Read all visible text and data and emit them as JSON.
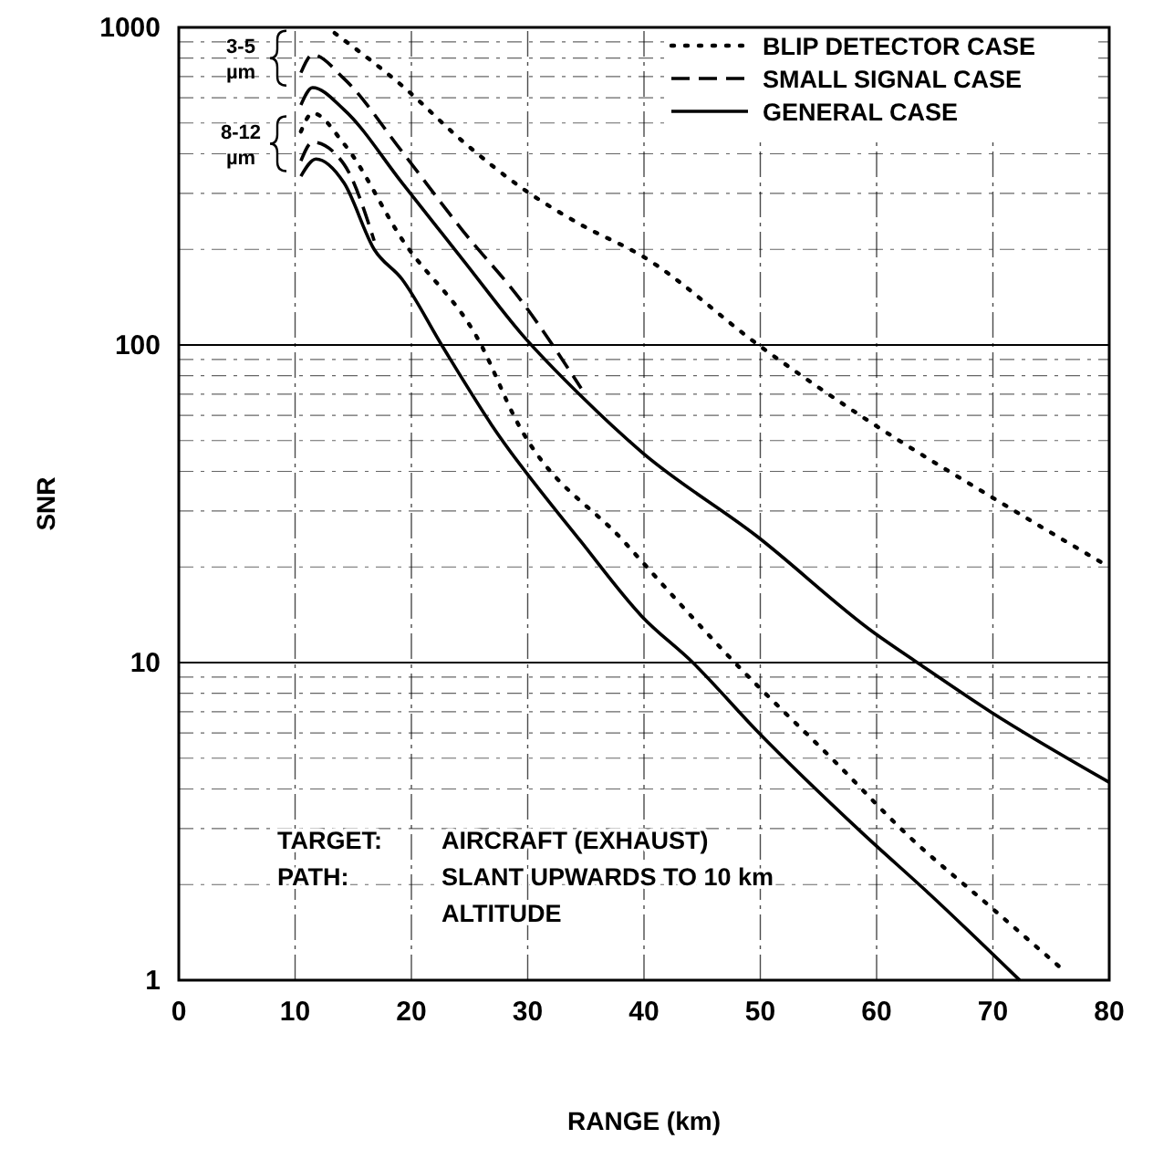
{
  "chart_data": {
    "type": "line",
    "xlabel": "RANGE (km)",
    "ylabel": "SNR",
    "log": "y",
    "grid": true,
    "legend": "top right",
    "marker": "none",
    "xlim": [
      0,
      80
    ],
    "ylim": [
      1,
      1000
    ],
    "xticks": [
      0,
      10,
      20,
      30,
      40,
      50,
      60,
      70,
      80
    ],
    "yticks": [
      1,
      {
        "value": 2,
        "label": null
      },
      {
        "value": 3,
        "label": null
      },
      {
        "value": 4,
        "label": null
      },
      {
        "value": 5,
        "label": null
      },
      {
        "value": 6,
        "label": null
      },
      {
        "value": 7,
        "label": null
      },
      {
        "value": 8,
        "label": null
      },
      {
        "value": 9,
        "label": null
      },
      10,
      {
        "value": 20,
        "label": null
      },
      {
        "value": 30,
        "label": null
      },
      {
        "value": 40,
        "label": null
      },
      {
        "value": 50,
        "label": null
      },
      {
        "value": 60,
        "label": null
      },
      {
        "value": 70,
        "label": null
      },
      {
        "value": 80,
        "label": null
      },
      {
        "value": 90,
        "label": null
      },
      100,
      {
        "value": 200,
        "label": null
      },
      {
        "value": 300,
        "label": null
      },
      {
        "value": 400,
        "label": null
      },
      {
        "value": 500,
        "label": null
      },
      {
        "value": 600,
        "label": null
      },
      {
        "value": 700,
        "label": null
      },
      {
        "value": 800,
        "label": null
      },
      {
        "value": 900,
        "label": null
      },
      1000
    ],
    "series": [
      {
        "name": "BLIP DETECTOR CASE",
        "color": "#000000",
        "line_style": "dotted",
        "x": [
          13.4,
          19.2,
          24.5,
          29.5,
          34.6,
          39.8,
          50,
          59.2,
          70,
          80
        ],
        "values": [
          960,
          655,
          435,
          312,
          239,
          191,
          99,
          58,
          33,
          20
        ]
      },
      {
        "name": "SMALL SIGNAL CASE",
        "color": "#000000",
        "line_style": "dashed",
        "x": [
          10.5,
          11.5,
          14.2,
          19.2,
          24.5,
          29.5,
          34.6
        ],
        "values": [
          720,
          820,
          690,
          406,
          227,
          137,
          73
        ]
      },
      {
        "name": "GENERAL CASE",
        "color": "#000000",
        "line_style": "solid",
        "x": [
          10.5,
          11.5,
          14.2,
          19.2,
          24.5,
          29.5,
          34.6,
          39.8,
          49.7,
          59.8,
          63.5,
          69.8,
          80
        ],
        "values": [
          570,
          646,
          551,
          324,
          184,
          108,
          69,
          46,
          25,
          12.4,
          10,
          7,
          4.2
        ]
      },
      {
        "color": "#000000",
        "line_style": "dotted",
        "x": [
          10.5,
          11.5,
          14.2,
          19.2,
          26,
          29,
          38.3,
          47.8,
          56.6,
          62.5,
          69.8,
          76
        ],
        "values": [
          470,
          537,
          430,
          215,
          100,
          58,
          24,
          10,
          4.8,
          2.9,
          1.7,
          1.08
        ]
      },
      {
        "color": "#000000",
        "line_style": "dashed",
        "x": [
          10.5,
          11.5,
          14.2,
          16.8
        ],
        "values": [
          380,
          435,
          371,
          213
        ]
      },
      {
        "color": "#000000",
        "line_style": "solid",
        "x": [
          10.5,
          11.8,
          14.2,
          16.8,
          19.2,
          22.6,
          26.9,
          34.6,
          39.8,
          44.2,
          49.7,
          58.8,
          64.6,
          72.3
        ],
        "values": [
          340,
          385,
          324,
          200,
          161,
          100,
          56,
          24,
          14,
          10,
          6.1,
          2.9,
          1.86,
          1
        ]
      }
    ],
    "annotations": [
      "3-5 µm",
      "8-12 µm",
      "TARGET: AIRCRAFT (EXHAUST)",
      "PATH: SLANT UPWARDS TO 10 km ALTITUDE"
    ]
  }
}
